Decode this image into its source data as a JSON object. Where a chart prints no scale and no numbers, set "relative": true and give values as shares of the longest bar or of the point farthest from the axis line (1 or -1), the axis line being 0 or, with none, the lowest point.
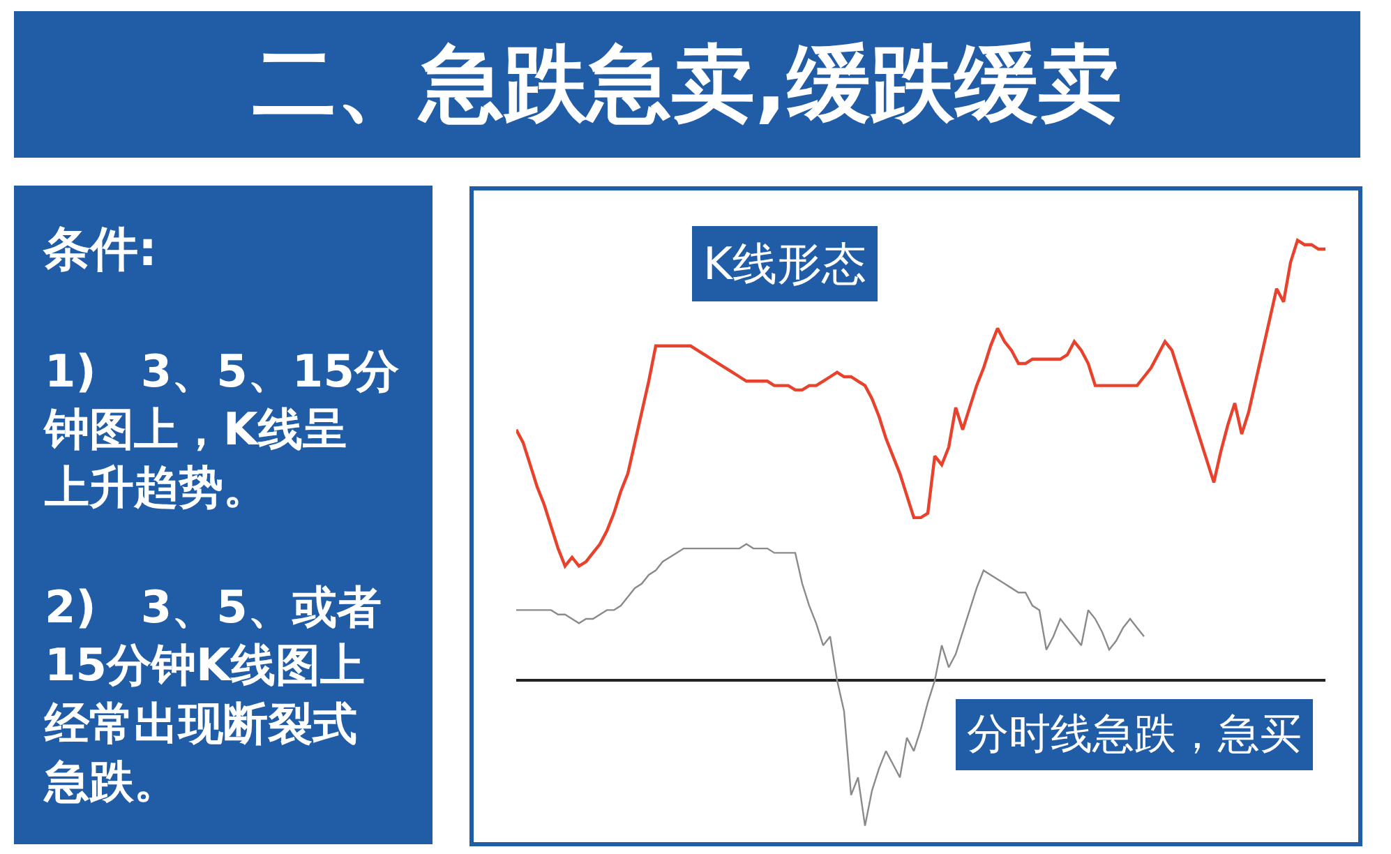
{
  "chart_data": {
    "type": "line",
    "title": "二、急跌急卖,缓跌缓卖",
    "annotations": [
      "条件:",
      "1)　3、5、15分钟图上，K线呈上升趋势。",
      "2)　3、5、或者15分钟K线图上经常出现断裂式急跌。",
      "K线形态",
      "分时线急跌，急买"
    ],
    "relative": true,
    "categories": [
      null,
      null,
      null,
      null,
      null,
      null,
      null,
      null,
      null,
      null,
      null,
      null,
      null,
      null,
      null,
      null,
      null,
      null,
      null,
      null,
      null,
      null,
      null,
      null,
      null,
      null,
      null,
      null,
      null,
      null,
      null,
      null,
      null,
      null,
      null,
      null,
      null,
      null,
      null,
      null,
      null,
      null,
      null,
      null,
      null,
      null,
      null,
      null,
      null,
      null,
      null,
      null,
      null,
      null,
      null,
      null,
      null,
      null,
      null,
      null,
      null,
      null,
      null,
      null,
      null,
      null,
      null,
      null,
      null,
      null,
      null,
      null,
      null,
      null,
      null,
      null,
      null,
      null,
      null,
      null,
      null,
      null,
      null,
      null,
      null,
      null,
      null,
      null,
      null,
      null,
      null,
      null,
      null,
      null,
      null,
      null,
      null,
      null,
      null,
      null,
      null,
      null,
      null,
      null,
      null,
      null,
      null,
      null,
      null,
      null,
      null,
      null,
      null,
      null,
      null,
      null,
      null
    ],
    "series": [
      {
        "color": "#e8412c",
        "values": [
          0.57,
          0.54,
          0.49,
          0.44,
          0.4,
          0.35,
          0.3,
          0.26,
          0.28,
          0.26,
          0.27,
          0.29,
          0.31,
          0.34,
          0.38,
          0.43,
          0.47,
          0.54,
          0.61,
          0.68,
          0.76,
          0.76,
          0.76,
          0.76,
          0.76,
          0.76,
          0.75,
          0.74,
          0.73,
          0.72,
          0.71,
          0.7,
          0.69,
          0.68,
          0.68,
          0.68,
          0.68,
          0.67,
          0.67,
          0.67,
          0.66,
          0.66,
          0.67,
          0.67,
          0.68,
          0.69,
          0.7,
          0.69,
          0.69,
          0.68,
          0.67,
          0.64,
          0.6,
          0.55,
          0.51,
          0.47,
          0.42,
          0.37,
          0.37,
          0.38,
          0.51,
          0.49,
          0.53,
          0.62,
          0.57,
          0.62,
          0.67,
          0.71,
          0.76,
          0.8,
          0.77,
          0.75,
          0.72,
          0.72,
          0.73,
          0.73,
          0.73,
          0.73,
          0.73,
          0.74,
          0.77,
          0.75,
          0.72,
          0.67,
          0.67,
          0.67,
          0.67,
          0.67,
          0.67,
          0.67,
          0.69,
          0.71,
          0.74,
          0.77,
          0.75,
          0.7,
          0.65,
          0.6,
          0.55,
          0.5,
          0.45,
          0.52,
          0.58,
          0.63,
          0.56,
          0.61,
          0.68,
          0.75,
          0.82,
          0.89,
          0.86,
          0.95,
          1,
          0.99,
          0.99,
          0.98,
          0.98
        ]
      },
      {
        "color": "#8a8a8a",
        "values": [
          0.16,
          0.16,
          0.16,
          0.16,
          0.16,
          0.16,
          0.15,
          0.15,
          0.14,
          0.13,
          0.14,
          0.14,
          0.15,
          0.16,
          0.16,
          0.17,
          0.19,
          0.21,
          0.22,
          0.24,
          0.25,
          0.27,
          0.28,
          0.29,
          0.3,
          0.3,
          0.3,
          0.3,
          0.3,
          0.3,
          0.3,
          0.3,
          0.3,
          0.31,
          0.3,
          0.3,
          0.3,
          0.29,
          0.29,
          0.29,
          0.29,
          0.22,
          0.17,
          0.13,
          0.08,
          0.1,
          0.0,
          -0.07,
          -0.26,
          -0.22,
          -0.33,
          -0.25,
          -0.2,
          -0.16,
          -0.19,
          -0.22,
          -0.13,
          -0.16,
          -0.11,
          -0.05,
          0.0,
          0.08,
          0.03,
          0.06,
          0.11,
          0.16,
          0.21,
          0.25,
          0.24,
          0.23,
          0.22,
          0.21,
          0.2,
          0.2,
          0.17,
          0.16,
          0.07,
          0.1,
          0.14,
          0.12,
          0.1,
          0.08,
          0.16,
          0.14,
          0.11,
          0.07,
          0.09,
          0.12,
          0.14,
          0.12,
          0.1,
          null,
          null,
          null,
          null,
          null,
          null,
          null,
          null,
          null,
          null,
          null,
          null,
          null,
          null,
          null,
          null,
          null,
          null,
          null,
          null,
          null,
          null,
          null,
          null,
          null,
          null
        ]
      }
    ]
  }
}
